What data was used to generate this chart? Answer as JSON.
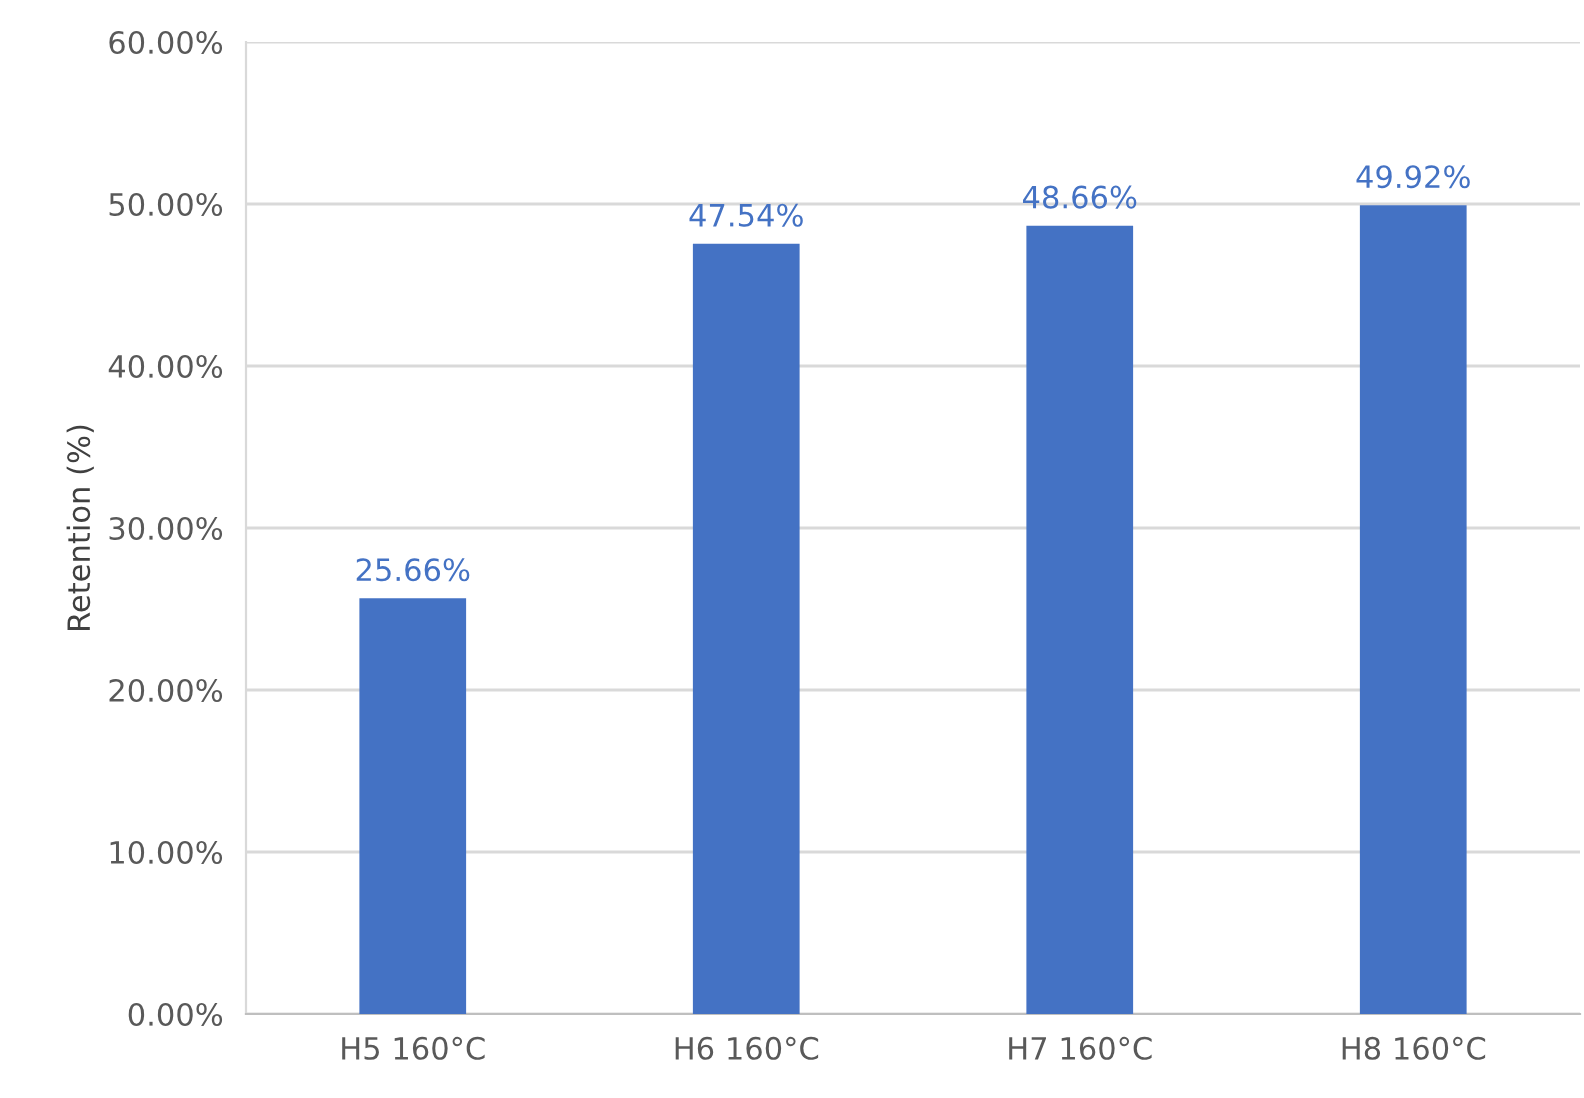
{
  "chart_data": {
    "type": "bar",
    "ylabel": "Retention (%)",
    "categories": [
      "H5 160°C",
      "H6 160°C",
      "H7 160°C",
      "H8 160°C"
    ],
    "series": [
      {
        "color": "#4472c4",
        "values": [
          25.66,
          47.54,
          48.66,
          49.92
        ],
        "value_labels": [
          "25.66%",
          "47.54%",
          "48.66%",
          "49.92%"
        ]
      }
    ],
    "ylim": [
      0,
      60
    ],
    "yticks": [
      {
        "value": 0,
        "label": "0.00%"
      },
      {
        "value": 10,
        "label": "10.00%"
      },
      {
        "value": 20,
        "label": "20.00%"
      },
      {
        "value": 30,
        "label": "30.00%"
      },
      {
        "value": 40,
        "label": "40.00%"
      },
      {
        "value": 50,
        "label": "50.00%"
      },
      {
        "value": 60,
        "label": "60.00%"
      }
    ],
    "grid": "y"
  }
}
